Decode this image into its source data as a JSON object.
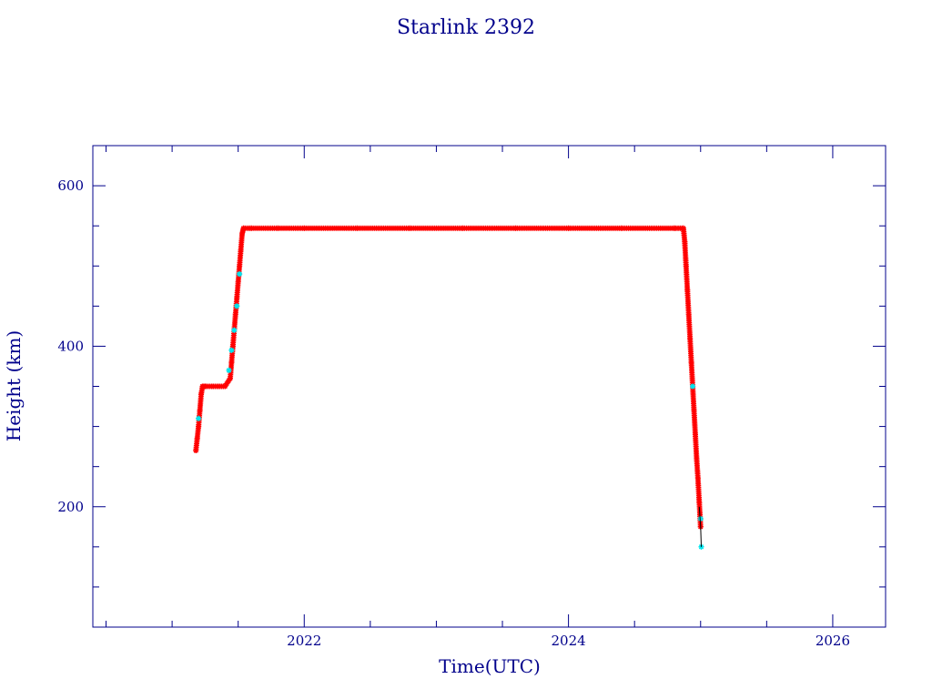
{
  "chart_data": {
    "type": "scatter",
    "title": "Starlink 2392",
    "xlabel": "Time(UTC)",
    "ylabel": "Height (km)",
    "xlim": [
      2020.4,
      2026.4
    ],
    "ylim": [
      50,
      650
    ],
    "x_ticks": [
      {
        "value": 2022,
        "label": "2022"
      },
      {
        "value": 2024,
        "label": "2024"
      },
      {
        "value": 2026,
        "label": "2026"
      }
    ],
    "x_minor_step": 0.5,
    "y_ticks": [
      {
        "value": 200,
        "label": "200"
      },
      {
        "value": 400,
        "label": "400"
      },
      {
        "value": 600,
        "label": "600"
      }
    ],
    "y_minor_step": 50,
    "grid": false,
    "series": [
      {
        "color": "#ff0000",
        "marker": "star",
        "x": [
          2021.18,
          2021.19,
          2021.2,
          2021.21,
          2021.22,
          2021.23,
          2021.24,
          2021.26,
          2021.3,
          2021.35,
          2021.4,
          2021.44,
          2021.45,
          2021.46,
          2021.47,
          2021.48,
          2021.49,
          2021.5,
          2021.51,
          2021.52,
          2021.53,
          2021.54,
          2021.6,
          2021.8,
          2022.0,
          2022.4,
          2022.8,
          2023.2,
          2023.6,
          2024.0,
          2024.4,
          2024.8,
          2024.87,
          2024.88,
          2024.89,
          2024.9,
          2024.91,
          2024.92,
          2024.93,
          2024.94,
          2024.95,
          2024.96,
          2024.97,
          2024.98,
          2024.99,
          2025.0
        ],
        "y": [
          270,
          285,
          300,
          320,
          340,
          350,
          350,
          350,
          350,
          350,
          350,
          360,
          380,
          400,
          420,
          440,
          460,
          480,
          500,
          520,
          540,
          547,
          547,
          547,
          547,
          547,
          547,
          547,
          547,
          547,
          547,
          547,
          547,
          530,
          500,
          470,
          440,
          410,
          380,
          350,
          320,
          290,
          260,
          235,
          205,
          175
        ]
      },
      {
        "color": "#00e5ee",
        "marker": "star",
        "x": [
          2021.2,
          2021.43,
          2021.45,
          2021.47,
          2021.49,
          2021.51,
          2024.94,
          2025.0,
          2025.005
        ],
        "y": [
          310,
          370,
          395,
          420,
          450,
          490,
          350,
          185,
          150
        ]
      },
      {
        "color": "#000000",
        "marker": "line",
        "x": [
          2024.99,
          2025.0,
          2025.005
        ],
        "y": [
          200,
          175,
          150
        ]
      }
    ]
  }
}
